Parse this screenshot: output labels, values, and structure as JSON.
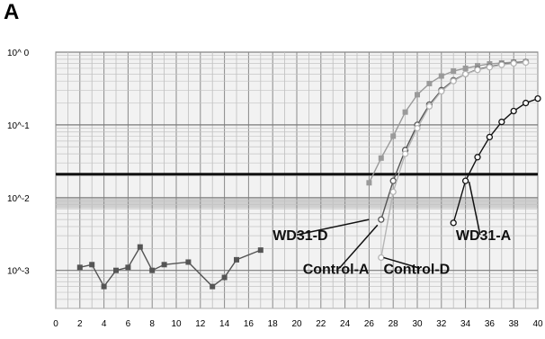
{
  "panel_label": "A",
  "chart_data": {
    "type": "line",
    "title": "",
    "xlabel": "",
    "ylabel": "",
    "xlim": [
      0,
      40
    ],
    "ylim": [
      0.0003,
      1
    ],
    "yscale": "log",
    "grid": true,
    "x_ticks": [
      0,
      2,
      4,
      6,
      8,
      10,
      12,
      14,
      16,
      18,
      20,
      22,
      24,
      26,
      28,
      30,
      32,
      34,
      36,
      38,
      40
    ],
    "y_ticks": [
      {
        "value": 1,
        "label": "10^ 0"
      },
      {
        "value": 0.1,
        "label": "10^-1"
      },
      {
        "value": 0.01,
        "label": "10^-2"
      },
      {
        "value": 0.001,
        "label": "10^-3"
      }
    ],
    "threshold": 0.021,
    "series": [
      {
        "name": "WD31-A",
        "color": "#111111",
        "marker": "circle",
        "points": [
          [
            33,
            0.0045
          ],
          [
            34,
            0.017
          ],
          [
            35,
            0.036
          ],
          [
            36,
            0.068
          ],
          [
            37,
            0.11
          ],
          [
            38,
            0.155
          ],
          [
            39,
            0.2
          ],
          [
            40,
            0.23
          ]
        ]
      },
      {
        "name": "WD31-D",
        "color": "#9a9a9a",
        "marker": "square",
        "points": [
          [
            26,
            0.016
          ],
          [
            27,
            0.035
          ],
          [
            28,
            0.07
          ],
          [
            29,
            0.15
          ],
          [
            30,
            0.26
          ],
          [
            31,
            0.37
          ],
          [
            32,
            0.47
          ],
          [
            33,
            0.55
          ],
          [
            34,
            0.6
          ],
          [
            35,
            0.65
          ],
          [
            36,
            0.69
          ],
          [
            37,
            0.71
          ],
          [
            38,
            0.73
          ],
          [
            39,
            0.74
          ]
        ]
      },
      {
        "name": "Control-A",
        "color": "#555555",
        "marker": "circle",
        "points": [
          [
            27,
            0.005
          ],
          [
            28,
            0.017
          ],
          [
            29,
            0.045
          ],
          [
            30,
            0.1
          ],
          [
            31,
            0.19
          ],
          [
            32,
            0.3
          ],
          [
            33,
            0.41
          ],
          [
            34,
            0.5
          ],
          [
            35,
            0.58
          ],
          [
            36,
            0.63
          ],
          [
            37,
            0.68
          ],
          [
            38,
            0.71
          ],
          [
            39,
            0.73
          ]
        ]
      },
      {
        "name": "Control-D",
        "color": "#b5b5b5",
        "marker": "circle",
        "points": [
          [
            27,
            0.0015
          ],
          [
            28,
            0.012
          ],
          [
            29,
            0.04
          ],
          [
            30,
            0.09
          ],
          [
            31,
            0.18
          ],
          [
            32,
            0.29
          ],
          [
            33,
            0.4
          ],
          [
            34,
            0.5
          ],
          [
            35,
            0.57
          ],
          [
            36,
            0.62
          ],
          [
            37,
            0.67
          ],
          [
            38,
            0.7
          ],
          [
            39,
            0.72
          ]
        ]
      },
      {
        "name": "",
        "color": "#555555",
        "marker": "square",
        "points": [
          [
            2,
            0.0011
          ],
          [
            3,
            0.0012
          ],
          [
            4,
            0.0006
          ],
          [
            5,
            0.001
          ],
          [
            6,
            0.0011
          ],
          [
            7,
            0.0021
          ],
          [
            8,
            0.001
          ],
          [
            9,
            0.0012
          ],
          [
            11,
            0.0013
          ],
          [
            13,
            0.0006
          ],
          [
            14,
            0.0008
          ],
          [
            15,
            0.0014
          ],
          [
            17,
            0.0019
          ]
        ]
      }
    ],
    "annotations": [
      {
        "text": "WD31-D",
        "x": 18,
        "y": 0.0026,
        "arrow_to": [
          26,
          0.005
        ]
      },
      {
        "text": "Control-A",
        "x": 20.5,
        "y": 0.0009,
        "arrow_to": [
          26.7,
          0.0042
        ]
      },
      {
        "text": "Control-D",
        "x": 27.2,
        "y": 0.0009,
        "arrow_to": [
          27.2,
          0.0015
        ]
      },
      {
        "text": "WD31-A",
        "x": 33.2,
        "y": 0.0026,
        "arrow_to": [
          34.3,
          0.0165
        ]
      }
    ]
  }
}
